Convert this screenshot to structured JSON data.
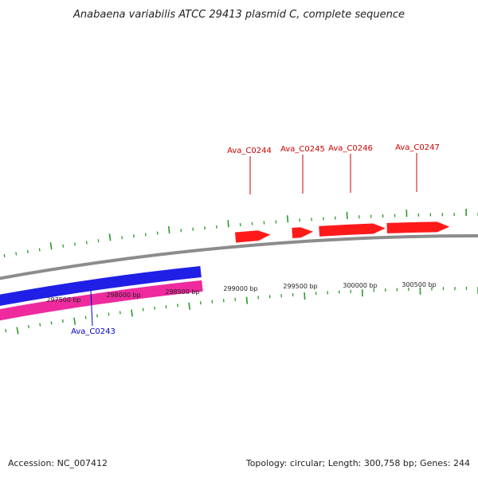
{
  "title": "Anabaena variabilis ATCC 29413 plasmid C, complete sequence",
  "accession_text": "Accession: NC_007412",
  "summary_text": "Topology: circular; Length: 300,758 bp; Genes: 244",
  "colors": {
    "backbone": "#8c8c8c",
    "forward_gene": "#ff1a1a",
    "reverse_gene_blue": "#1f1fe6",
    "reverse_gene_pink": "#ee2a9e",
    "tick": "#2a9a2a",
    "forward_label": "#cc0000",
    "reverse_label": "#0000cc"
  },
  "scale_labels": [
    "297500 bp",
    "298000 bp",
    "298500 bp",
    "299000 bp",
    "299500 bp",
    "300000 bp",
    "300500 bp"
  ],
  "forward_genes": [
    {
      "name": "Ava_C0244"
    },
    {
      "name": "Ava_C0245"
    },
    {
      "name": "Ava_C0246"
    },
    {
      "name": "Ava_C0247"
    }
  ],
  "reverse_genes": [
    {
      "name": "Ava_C0243"
    }
  ]
}
